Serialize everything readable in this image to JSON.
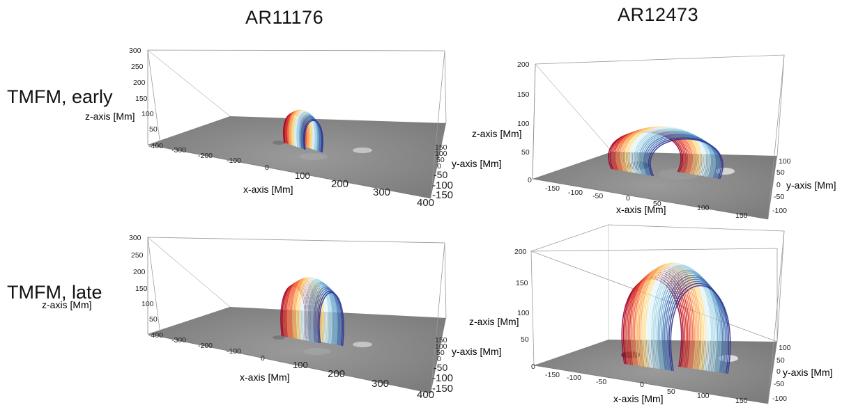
{
  "titles": {
    "left": "AR11176",
    "right": "AR12473"
  },
  "row_labels": {
    "early": "TMFM, early",
    "late": "TMFM, late"
  },
  "panels": [
    {
      "id": "ar11176-early",
      "zlabel": "z-axis [Mm]",
      "xlabel": "x-axis [Mm]",
      "ylabel": "y-axis [Mm]",
      "z_ticks": [
        "300",
        "250",
        "200",
        "150",
        "100",
        "50",
        "0"
      ],
      "x_ticks": [
        "-400",
        "-300",
        "-200",
        "-100",
        "0",
        "100",
        "200",
        "300",
        "400"
      ],
      "y_ticks": [
        "150",
        "100",
        "50",
        "0",
        "-50",
        "-100",
        "-150"
      ]
    },
    {
      "id": "ar12473-early",
      "zlabel": "z-axis [Mm]",
      "xlabel": "x-axis [Mm]",
      "ylabel": "y-axis [Mm]",
      "z_ticks": [
        "200",
        "150",
        "100",
        "50",
        "0"
      ],
      "x_ticks": [
        "-150",
        "-100",
        "-50",
        "0",
        "50",
        "100",
        "150"
      ],
      "y_ticks": [
        "100",
        "50",
        "0",
        "-50",
        "-100"
      ]
    },
    {
      "id": "ar11176-late",
      "zlabel": "z-axis [Mm]",
      "xlabel": "x-axis [Mm]",
      "ylabel": "y-axis [Mm]",
      "z_ticks": [
        "300",
        "250",
        "200",
        "150",
        "100",
        "50",
        "0"
      ],
      "x_ticks": [
        "-400",
        "-300",
        "-200",
        "-100",
        "0",
        "100",
        "200",
        "300",
        "400"
      ],
      "y_ticks": [
        "150",
        "100",
        "50",
        "0",
        "-50",
        "-100",
        "-150"
      ]
    },
    {
      "id": "ar12473-late",
      "zlabel": "z-axis [Mm]",
      "xlabel": "x-axis [Mm]",
      "ylabel": "y-axis [Mm]",
      "z_ticks": [
        "200",
        "150",
        "100",
        "50",
        "0"
      ],
      "x_ticks": [
        "-150",
        "-100",
        "-50",
        "0",
        "50",
        "100",
        "150"
      ],
      "y_ticks": [
        "100",
        "50",
        "0",
        "-50",
        "-100"
      ]
    }
  ],
  "colors": {
    "floor": "#8c8c8c",
    "box_line": "#9a9a9a",
    "field_line_palette": [
      "#a50026",
      "#d73027",
      "#f46d43",
      "#fdae61",
      "#fee090",
      "#e0f3f8",
      "#abd9e9",
      "#74add1",
      "#4575b4",
      "#313695"
    ]
  }
}
